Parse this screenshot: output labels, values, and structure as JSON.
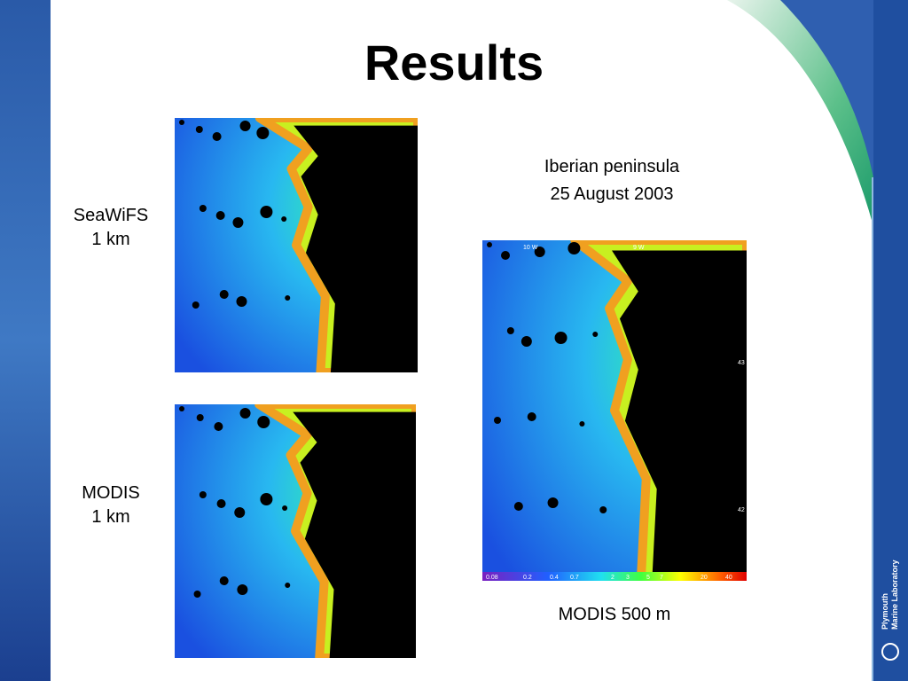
{
  "slide": {
    "title": "Results",
    "seawifs_label": [
      "SeaWiFS",
      "1 km"
    ],
    "modis_label": [
      "MODIS",
      "1 km"
    ],
    "iberian_label": [
      "Iberian peninsula",
      "25 August 2003"
    ],
    "modis500_label": "MODIS 500 m",
    "map_lon_labels": [
      "10 W",
      "9 W"
    ],
    "map_lat_labels": [
      "43",
      "42"
    ],
    "colorbar_labels": [
      "0.08",
      "0.2",
      "0.4",
      "0.7",
      "2",
      "3",
      "5",
      "7",
      "20",
      "40"
    ],
    "logo": [
      "Plymouth",
      "Marine Laboratory"
    ]
  }
}
